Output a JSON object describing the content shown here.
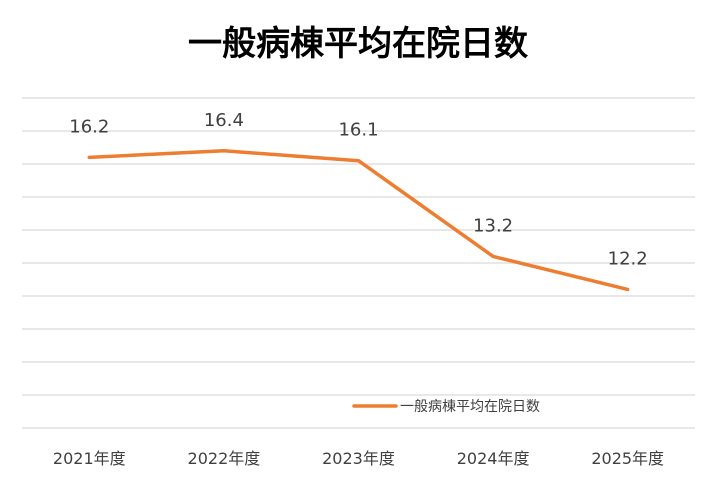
{
  "chart_data": {
    "type": "line",
    "title": "一般病棟平均在院日数",
    "categories": [
      "2021年度",
      "2022年度",
      "2023年度",
      "2024年度",
      "2025年度"
    ],
    "series": [
      {
        "name": "一般病棟平均在院日数",
        "values": [
          16.2,
          16.4,
          16.1,
          13.2,
          12.2
        ],
        "labels": [
          "16.2",
          "16.4",
          "16.1",
          "13.2",
          "12.2"
        ],
        "color": "#ED7D31"
      }
    ],
    "xlabel": "",
    "ylabel": "",
    "ylim": [
      8,
      18
    ],
    "ygrid_step": 1,
    "grid": true,
    "legend_position": "bottom-right"
  }
}
